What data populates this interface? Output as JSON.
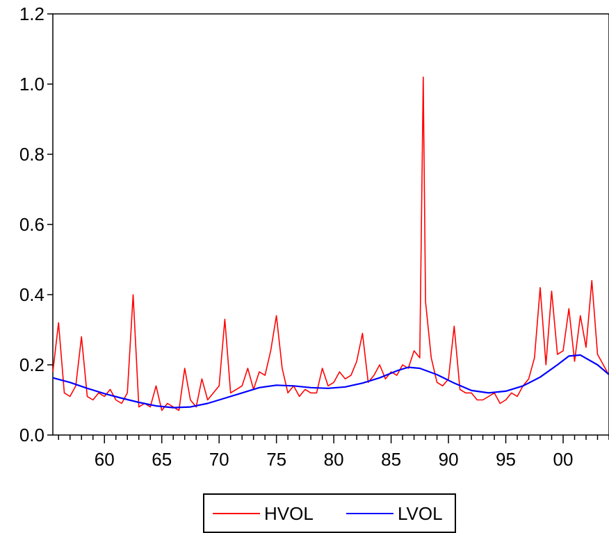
{
  "chart_data": {
    "type": "line",
    "title": "",
    "xlabel": "",
    "ylabel": "",
    "xlim": [
      1955.5,
      2004.0
    ],
    "ylim": [
      0.0,
      1.2
    ],
    "x_tick_labels": [
      {
        "x": 1960,
        "label": "60"
      },
      {
        "x": 1965,
        "label": "65"
      },
      {
        "x": 1970,
        "label": "70"
      },
      {
        "x": 1975,
        "label": "75"
      },
      {
        "x": 1980,
        "label": "80"
      },
      {
        "x": 1985,
        "label": "85"
      },
      {
        "x": 1990,
        "label": "90"
      },
      {
        "x": 1995,
        "label": "95"
      },
      {
        "x": 2000,
        "label": "00"
      }
    ],
    "y_tick_labels": [
      {
        "y": 0.0,
        "label": "0.0"
      },
      {
        "y": 0.2,
        "label": "0.2"
      },
      {
        "y": 0.4,
        "label": "0.4"
      },
      {
        "y": 0.6,
        "label": "0.6"
      },
      {
        "y": 0.8,
        "label": "0.8"
      },
      {
        "y": 1.0,
        "label": "1.0"
      },
      {
        "y": 1.2,
        "label": "1.2"
      }
    ],
    "grid": false,
    "legend": {
      "position": "bottom-center",
      "boxed": true
    },
    "series": [
      {
        "name": "HVOL",
        "color": "#ff0000",
        "x": [
          1955.5,
          1956.0,
          1956.5,
          1957.0,
          1957.5,
          1958.0,
          1958.5,
          1959.0,
          1959.5,
          1960.0,
          1960.5,
          1961.0,
          1961.5,
          1962.0,
          1962.5,
          1963.0,
          1963.5,
          1964.0,
          1964.5,
          1965.0,
          1965.5,
          1966.0,
          1966.5,
          1967.0,
          1967.5,
          1968.0,
          1968.5,
          1969.0,
          1969.5,
          1970.0,
          1970.5,
          1971.0,
          1971.5,
          1972.0,
          1972.5,
          1973.0,
          1973.5,
          1974.0,
          1974.5,
          1975.0,
          1975.5,
          1976.0,
          1976.5,
          1977.0,
          1977.5,
          1978.0,
          1978.5,
          1979.0,
          1979.5,
          1980.0,
          1980.5,
          1981.0,
          1981.5,
          1982.0,
          1982.5,
          1983.0,
          1983.5,
          1984.0,
          1984.5,
          1985.0,
          1985.5,
          1986.0,
          1986.5,
          1987.0,
          1987.5,
          1987.8,
          1988.0,
          1988.5,
          1989.0,
          1989.5,
          1990.0,
          1990.5,
          1991.0,
          1991.5,
          1992.0,
          1992.5,
          1993.0,
          1993.5,
          1994.0,
          1994.5,
          1995.0,
          1995.5,
          1996.0,
          1996.5,
          1997.0,
          1997.5,
          1998.0,
          1998.5,
          1999.0,
          1999.5,
          2000.0,
          2000.5,
          2001.0,
          2001.5,
          2002.0,
          2002.5,
          2003.0,
          2003.5,
          2004.0
        ],
        "y": [
          0.18,
          0.32,
          0.12,
          0.11,
          0.14,
          0.28,
          0.11,
          0.1,
          0.12,
          0.11,
          0.13,
          0.1,
          0.09,
          0.12,
          0.4,
          0.08,
          0.09,
          0.08,
          0.14,
          0.07,
          0.09,
          0.08,
          0.07,
          0.19,
          0.1,
          0.08,
          0.16,
          0.1,
          0.12,
          0.14,
          0.33,
          0.12,
          0.13,
          0.14,
          0.19,
          0.13,
          0.18,
          0.17,
          0.24,
          0.34,
          0.19,
          0.12,
          0.14,
          0.11,
          0.13,
          0.12,
          0.12,
          0.19,
          0.14,
          0.15,
          0.18,
          0.16,
          0.17,
          0.21,
          0.29,
          0.15,
          0.17,
          0.2,
          0.16,
          0.18,
          0.17,
          0.2,
          0.19,
          0.24,
          0.22,
          1.02,
          0.38,
          0.22,
          0.15,
          0.14,
          0.16,
          0.31,
          0.13,
          0.12,
          0.12,
          0.1,
          0.1,
          0.11,
          0.12,
          0.09,
          0.1,
          0.12,
          0.11,
          0.14,
          0.16,
          0.22,
          0.42,
          0.2,
          0.41,
          0.23,
          0.24,
          0.36,
          0.21,
          0.34,
          0.25,
          0.44,
          0.23,
          0.2,
          0.17
        ]
      },
      {
        "name": "LVOL",
        "color": "#0000ff",
        "x": [
          1955.5,
          1957.0,
          1958.5,
          1960.0,
          1961.5,
          1963.0,
          1964.5,
          1966.0,
          1967.5,
          1969.0,
          1970.5,
          1972.0,
          1973.5,
          1975.0,
          1976.5,
          1978.0,
          1979.5,
          1981.0,
          1982.5,
          1984.0,
          1985.5,
          1986.5,
          1987.5,
          1989.0,
          1990.5,
          1992.0,
          1993.5,
          1995.0,
          1996.5,
          1998.0,
          1999.5,
          2000.5,
          2001.5,
          2003.0,
          2004.0
        ],
        "y": [
          0.163,
          0.15,
          0.133,
          0.118,
          0.105,
          0.093,
          0.083,
          0.078,
          0.08,
          0.09,
          0.105,
          0.12,
          0.135,
          0.142,
          0.14,
          0.135,
          0.133,
          0.137,
          0.148,
          0.163,
          0.183,
          0.193,
          0.19,
          0.172,
          0.148,
          0.127,
          0.12,
          0.125,
          0.14,
          0.165,
          0.2,
          0.225,
          0.228,
          0.2,
          0.172
        ]
      }
    ]
  }
}
